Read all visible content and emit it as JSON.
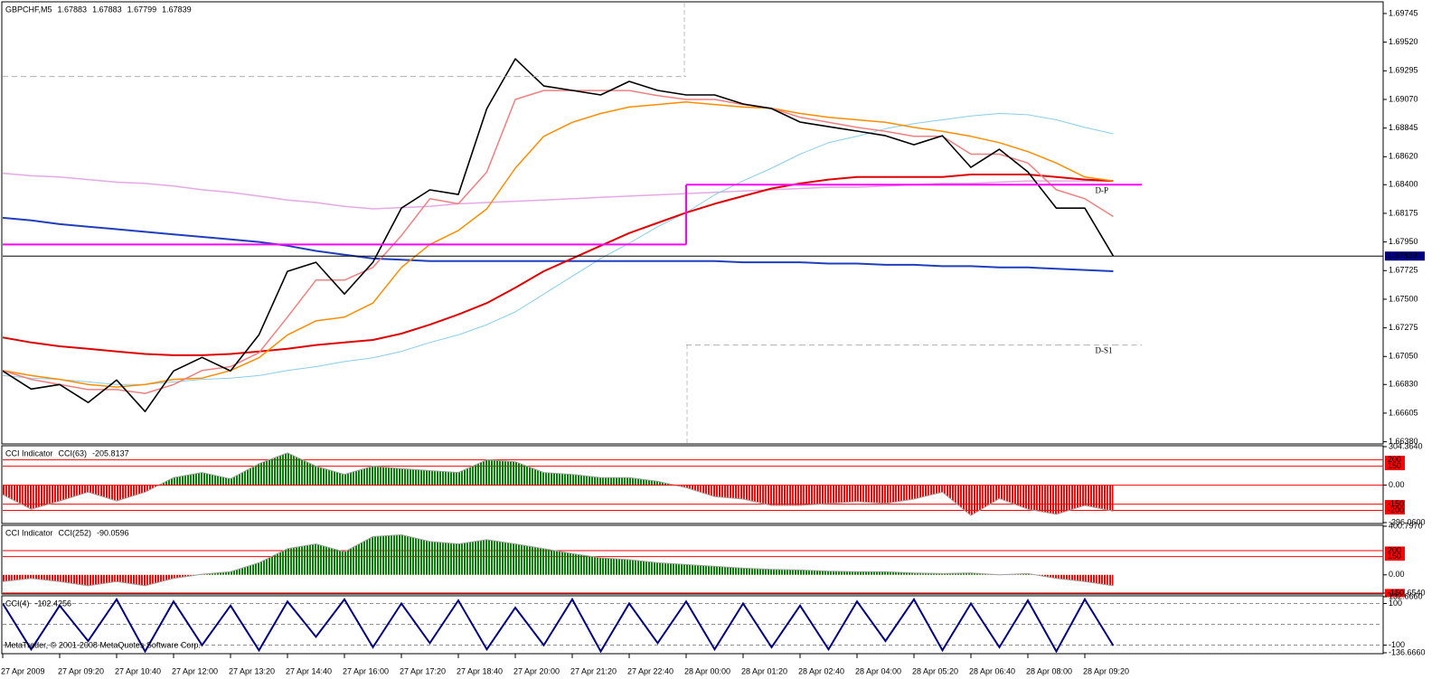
{
  "chart_data": [
    {
      "type": "line",
      "title": "GBPCHF,M5",
      "ohlc": [
        1.67883,
        1.67883,
        1.67799,
        1.67839
      ],
      "categories": [
        "27 Apr 2009",
        null,
        "27 Apr 09:20",
        null,
        "27 Apr 10:40",
        null,
        "27 Apr 12:00",
        null,
        "27 Apr 13:20",
        null,
        "27 Apr 14:40",
        null,
        "27 Apr 16:00",
        null,
        "27 Apr 17:20",
        null,
        "27 Apr 18:40",
        null,
        "27 Apr 20:00",
        null,
        "27 Apr 21:20",
        null,
        "27 Apr 22:40",
        null,
        "28 Apr 00:00",
        null,
        "28 Apr 01:20",
        null,
        "28 Apr 02:40",
        null,
        "28 Apr 04:00",
        null,
        "28 Apr 05:20",
        null,
        "28 Apr 06:40",
        null,
        "28 Apr 08:00",
        null,
        "28 Apr 09:20",
        null
      ],
      "series": [
        {
          "color": "#e6a8e6",
          "width": 1.5,
          "values": [
            1.6849,
            1.6847,
            1.6846,
            1.6844,
            1.6842,
            1.6841,
            1.6839,
            1.6836,
            1.6834,
            1.6831,
            1.6828,
            1.6826,
            1.6823,
            1.6821,
            1.6822,
            1.6823,
            1.6825,
            1.6826,
            1.6827,
            1.6828,
            1.6829,
            1.683,
            1.6831,
            1.6832,
            1.6833,
            1.6834,
            1.6835,
            1.6836,
            1.6837,
            1.6838,
            1.6838,
            1.6839,
            1.684,
            1.6841,
            1.6841,
            1.6842,
            1.6843,
            1.6843,
            1.6843,
            1.6843
          ]
        },
        {
          "color": "#87ceeb",
          "width": 1,
          "values": [
            1.669,
            1.6688,
            1.6687,
            1.6685,
            1.6683,
            1.6683,
            1.6685,
            1.6687,
            1.6688,
            1.669,
            1.6694,
            1.6697,
            1.6701,
            1.6704,
            1.6709,
            1.6716,
            1.6722,
            1.673,
            1.674,
            1.6754,
            1.6768,
            1.6782,
            1.6794,
            1.6807,
            1.6818,
            1.6832,
            1.6843,
            1.6853,
            1.6864,
            1.6873,
            1.6878,
            1.6884,
            1.6888,
            1.6891,
            1.6894,
            1.6896,
            1.6895,
            1.6891,
            1.6885,
            1.688
          ]
        },
        {
          "color": "#1f3fbf",
          "width": 2,
          "values": [
            1.6814,
            1.6812,
            1.6809,
            1.6807,
            1.6805,
            1.6803,
            1.6801,
            1.6799,
            1.6797,
            1.6795,
            1.6792,
            1.6788,
            1.6785,
            1.6782,
            1.6781,
            1.678,
            1.678,
            1.678,
            1.678,
            1.678,
            1.678,
            1.678,
            1.678,
            1.678,
            1.678,
            1.678,
            1.6779,
            1.6779,
            1.6779,
            1.6778,
            1.6778,
            1.6777,
            1.6777,
            1.6776,
            1.6776,
            1.6775,
            1.6775,
            1.6774,
            1.6773,
            1.6772
          ]
        },
        {
          "color": "#e00000",
          "width": 2,
          "values": [
            1.672,
            1.6716,
            1.6713,
            1.6711,
            1.6709,
            1.6707,
            1.6706,
            1.6706,
            1.6707,
            1.6709,
            1.6711,
            1.6714,
            1.6716,
            1.6718,
            1.6723,
            1.673,
            1.6738,
            1.6747,
            1.6759,
            1.6772,
            1.6782,
            1.6792,
            1.6802,
            1.681,
            1.6818,
            1.6825,
            1.6831,
            1.6837,
            1.6841,
            1.6844,
            1.6846,
            1.6846,
            1.6846,
            1.6846,
            1.6848,
            1.6848,
            1.6848,
            1.6846,
            1.6844,
            1.6843
          ]
        },
        {
          "color": "#ff8c00",
          "width": 1.5,
          "values": [
            1.6694,
            1.669,
            1.6687,
            1.6683,
            1.6681,
            1.6683,
            1.6687,
            1.6688,
            1.6694,
            1.6704,
            1.6722,
            1.6733,
            1.6736,
            1.6747,
            1.6775,
            1.6793,
            1.6804,
            1.6821,
            1.6853,
            1.6878,
            1.6889,
            1.6896,
            1.6901,
            1.6903,
            1.6905,
            1.6903,
            1.6901,
            1.69,
            1.6896,
            1.6893,
            1.6891,
            1.6889,
            1.6885,
            1.6882,
            1.6878,
            1.6873,
            1.6866,
            1.6857,
            1.6846,
            1.6843
          ]
        },
        {
          "color": "#f08080",
          "width": 1.5,
          "values": [
            1.6694,
            1.6687,
            1.6683,
            1.6679,
            1.6679,
            1.6676,
            1.6683,
            1.6694,
            1.6697,
            1.6708,
            1.6736,
            1.6765,
            1.6765,
            1.6775,
            1.68,
            1.6829,
            1.6825,
            1.685,
            1.6907,
            1.6914,
            1.6914,
            1.6914,
            1.6914,
            1.691,
            1.6907,
            1.6907,
            1.6903,
            1.69,
            1.6893,
            1.6889,
            1.6885,
            1.6882,
            1.6878,
            1.6878,
            1.6864,
            1.6864,
            1.6857,
            1.6836,
            1.6829,
            1.6815
          ]
        },
        {
          "color": "#000000",
          "width": 1.6,
          "values": [
            1.66936,
            1.66794,
            1.6683,
            1.66688,
            1.66865,
            1.66617,
            1.66936,
            1.67043,
            1.66936,
            1.67221,
            1.67719,
            1.6779,
            1.67541,
            1.6779,
            1.68216,
            1.68359,
            1.68323,
            1.68998,
            1.69389,
            1.69176,
            1.69141,
            1.69105,
            1.69212,
            1.69141,
            1.69105,
            1.69105,
            1.69034,
            1.68998,
            1.68892,
            1.68856,
            1.68821,
            1.68785,
            1.68714,
            1.68785,
            1.68536,
            1.68678,
            1.68501,
            1.68216,
            1.68216,
            1.67839
          ]
        },
        {
          "name": "D-P",
          "color": "#ff00ff",
          "label_color": "#ff00ff",
          "width": 2,
          "step": true,
          "values": [
            1.6793,
            1.6793,
            1.6793,
            1.6793,
            1.6793,
            1.6793,
            1.6793,
            1.6793,
            1.6793,
            1.6793,
            1.6793,
            1.6793,
            1.6793,
            1.6793,
            1.6793,
            1.6793,
            1.6793,
            1.6793,
            1.6793,
            1.6793,
            1.6793,
            1.6793,
            1.6793,
            1.6793,
            1.684,
            1.684,
            1.684,
            1.684,
            1.684,
            1.684,
            1.684,
            1.684,
            1.684,
            1.684,
            1.684,
            1.684,
            1.684,
            1.684,
            1.684,
            1.684
          ]
        },
        {
          "name": "D-S1",
          "color": "#b0b0b0",
          "label_color": "#cc0000",
          "width": 1,
          "step": true,
          "dash": true,
          "values": [
            1.6925,
            1.6925,
            1.6925,
            1.6925,
            1.6925,
            1.6925,
            1.6925,
            1.6925,
            1.6925,
            1.6925,
            1.6925,
            1.6925,
            1.6925,
            1.6925,
            1.6925,
            1.6925,
            1.6925,
            1.6925,
            1.6925,
            1.6925,
            1.6925,
            1.6925,
            1.6925,
            1.6925,
            1.6714,
            1.6714,
            1.6714,
            1.6714,
            1.6714,
            1.6714,
            1.6714,
            1.6714,
            1.6714,
            1.6714,
            1.6714,
            1.6714,
            1.6714,
            1.6714,
            1.6714,
            1.6714
          ]
        }
      ],
      "ylim": [
        1.6637,
        1.6983
      ],
      "yticks": [
        1.69745,
        {
          "value": 1.6952,
          "label": "1.69520"
        },
        1.69295,
        {
          "value": 1.6907,
          "label": "1.69070"
        },
        1.68845,
        {
          "value": 1.6862,
          "label": "1.68620"
        },
        {
          "value": 1.684,
          "label": "1.68400"
        },
        1.68175,
        {
          "value": 1.6795,
          "label": "1.67950"
        },
        1.67725,
        {
          "value": 1.675,
          "label": "1.67500"
        },
        1.67275,
        {
          "value": 1.6705,
          "label": "1.67050"
        },
        {
          "value": 1.6683,
          "label": "1.66830"
        },
        1.66605,
        {
          "value": 1.6638,
          "label": "1.66380"
        }
      ],
      "current_price": 1.67839
    },
    {
      "type": "histogram",
      "title": "CCI Indicator",
      "label": "CCI(63)",
      "values": [
        -75,
        -190,
        -125,
        -55,
        -125,
        -55,
        60,
        100,
        50,
        170,
        255,
        150,
        85,
        150,
        130,
        115,
        100,
        200,
        185,
        100,
        85,
        60,
        60,
        30,
        -20,
        -90,
        -110,
        -160,
        -160,
        -145,
        -130,
        -145,
        -110,
        -55,
        -240,
        -105,
        -190,
        -230,
        -160,
        -205.8137
      ],
      "color_up": "#008000",
      "color_down": "#ff0000",
      "line_color": "#a0a0a0",
      "ylim": [
        -296.06,
        304.364
      ],
      "yticks": [
        {
          "value": 304.364,
          "label": "304.3640"
        },
        {
          "value": 0,
          "label": "0.00"
        },
        {
          "value": -296.06,
          "label": "-296.0600"
        }
      ],
      "levels": [
        200,
        150,
        -150,
        -200
      ],
      "level_color": "#ff0000",
      "level_boxes": true,
      "zero_line": true
    },
    {
      "type": "histogram",
      "title": "CCI Indicator",
      "label": "CCI(252)",
      "values": [
        -55,
        -30,
        -55,
        -90,
        -55,
        -90,
        -30,
        5,
        25,
        100,
        215,
        255,
        190,
        315,
        330,
        275,
        255,
        290,
        255,
        215,
        175,
        140,
        125,
        100,
        85,
        70,
        55,
        45,
        40,
        30,
        25,
        25,
        15,
        10,
        15,
        0,
        10,
        -30,
        -55,
        -90.0596
      ],
      "color_up": "#008000",
      "color_down": "#ff0000",
      "line_color": "#a0a0a0",
      "ylim": [
        -150.654,
        400.797
      ],
      "yticks": [
        {
          "value": 400.797,
          "label": "400.7970"
        },
        {
          "value": 0,
          "label": "0.00"
        },
        {
          "value": -150.654,
          "label": "-150.6540"
        }
      ],
      "levels": [
        200,
        150,
        -150
      ],
      "level_color": "#ff0000",
      "level_boxes": true,
      "zero_line": false
    },
    {
      "type": "line",
      "label": "CCI(4)",
      "values": [
        100,
        -120,
        90,
        -80,
        120,
        -130,
        110,
        -100,
        90,
        -125,
        110,
        -60,
        120,
        -110,
        100,
        -90,
        115,
        -120,
        80,
        -100,
        120,
        -130,
        100,
        -90,
        110,
        -120,
        100,
        -110,
        90,
        -120,
        110,
        -80,
        120,
        -125,
        100,
        -110,
        115,
        -130,
        120,
        -102.4256
      ],
      "color": "#000080",
      "ylim": [
        -136.666,
        132.666
      ],
      "yticks": [
        {
          "value": 132.666,
          "label": "132.6660"
        },
        100,
        -100,
        {
          "value": -136.666,
          "label": "-136.6660"
        }
      ],
      "levels": [
        100,
        0,
        -100
      ],
      "level_color": "#909090",
      "level_dash": true,
      "level_boxes": false
    }
  ],
  "footer": "MetaTrader, © 2001-2008 MetaQuotes Software Corp."
}
